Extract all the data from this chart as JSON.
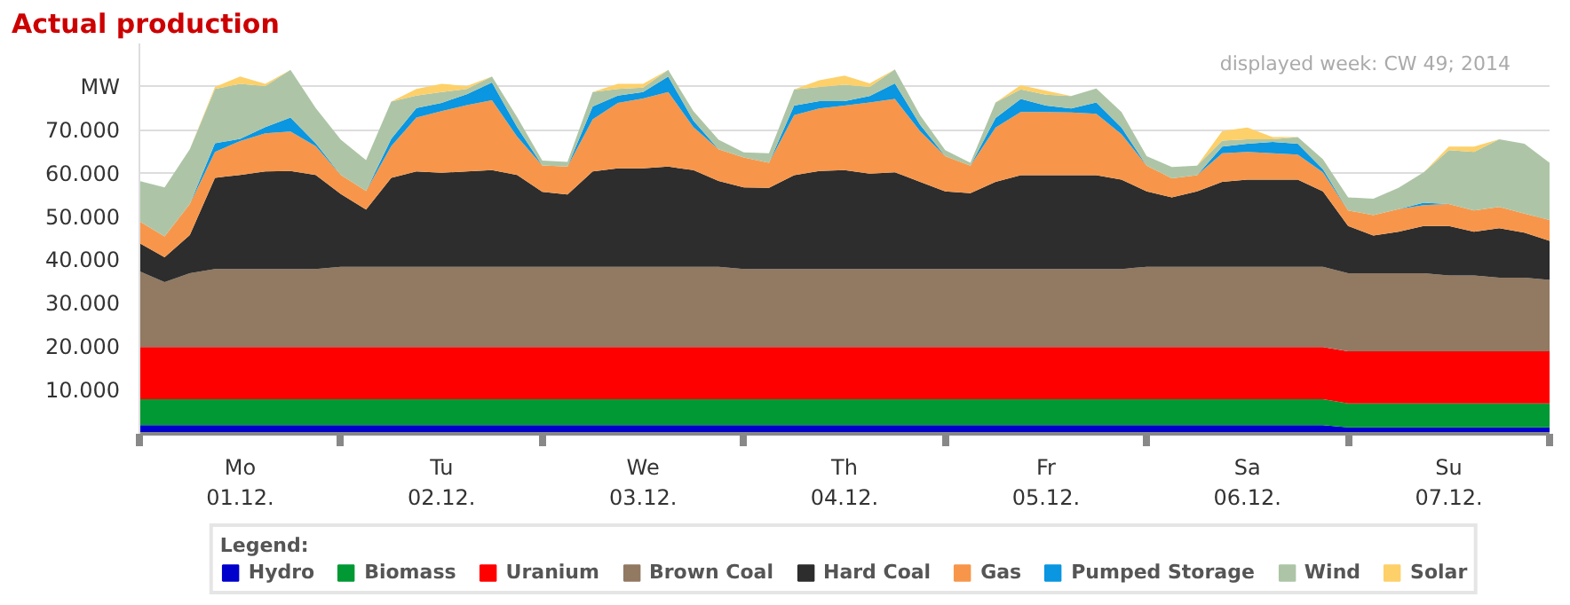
{
  "chart_data": {
    "type": "area",
    "stacked": true,
    "title": "Actual production",
    "ylabel": "MW",
    "legend_title": "Legend:",
    "annotations": [
      "displayed week: CW 49; 2014"
    ],
    "x": [
      "2014-12-01T00:00",
      "2014-12-01T03:00",
      "2014-12-01T06:00",
      "2014-12-01T09:00",
      "2014-12-01T12:00",
      "2014-12-01T15:00",
      "2014-12-01T18:00",
      "2014-12-01T21:00",
      "2014-12-02T00:00",
      "2014-12-02T03:00",
      "2014-12-02T06:00",
      "2014-12-02T09:00",
      "2014-12-02T12:00",
      "2014-12-02T15:00",
      "2014-12-02T18:00",
      "2014-12-02T21:00",
      "2014-12-03T00:00",
      "2014-12-03T03:00",
      "2014-12-03T06:00",
      "2014-12-03T09:00",
      "2014-12-03T12:00",
      "2014-12-03T15:00",
      "2014-12-03T18:00",
      "2014-12-03T21:00",
      "2014-12-04T00:00",
      "2014-12-04T03:00",
      "2014-12-04T06:00",
      "2014-12-04T09:00",
      "2014-12-04T12:00",
      "2014-12-04T15:00",
      "2014-12-04T18:00",
      "2014-12-04T21:00",
      "2014-12-05T00:00",
      "2014-12-05T03:00",
      "2014-12-05T06:00",
      "2014-12-05T09:00",
      "2014-12-05T12:00",
      "2014-12-05T15:00",
      "2014-12-05T18:00",
      "2014-12-05T21:00",
      "2014-12-06T00:00",
      "2014-12-06T03:00",
      "2014-12-06T06:00",
      "2014-12-06T09:00",
      "2014-12-06T12:00",
      "2014-12-06T15:00",
      "2014-12-06T18:00",
      "2014-12-06T21:00",
      "2014-12-07T00:00",
      "2014-12-07T03:00",
      "2014-12-07T06:00",
      "2014-12-07T09:00",
      "2014-12-07T12:00",
      "2014-12-07T15:00",
      "2014-12-07T18:00",
      "2014-12-07T21:00",
      "2014-12-08T00:00"
    ],
    "xlim": [
      "2014-12-01T00:00",
      "2014-12-08T00:00"
    ],
    "xticks": [
      {
        "value": "2014-12-01T00:00",
        "label": null
      },
      {
        "value": "2014-12-01T12:00",
        "label": "Mo\n01.12."
      },
      {
        "value": "2014-12-02T00:00",
        "label": null
      },
      {
        "value": "2014-12-02T12:00",
        "label": "Tu\n02.12."
      },
      {
        "value": "2014-12-03T00:00",
        "label": null
      },
      {
        "value": "2014-12-03T12:00",
        "label": "We\n03.12."
      },
      {
        "value": "2014-12-04T00:00",
        "label": null
      },
      {
        "value": "2014-12-04T12:00",
        "label": "Th\n04.12."
      },
      {
        "value": "2014-12-05T00:00",
        "label": null
      },
      {
        "value": "2014-12-05T12:00",
        "label": "Fr\n05.12."
      },
      {
        "value": "2014-12-06T00:00",
        "label": null
      },
      {
        "value": "2014-12-06T12:00",
        "label": "Sa\n06.12."
      },
      {
        "value": "2014-12-07T00:00",
        "label": null
      },
      {
        "value": "2014-12-07T12:00",
        "label": "Su\n07.12."
      },
      {
        "value": "2014-12-08T00:00",
        "label": null
      }
    ],
    "ylim": [
      0,
      90000
    ],
    "yticks": [
      {
        "value": 10000,
        "label": "10.000"
      },
      {
        "value": 20000,
        "label": "20.000"
      },
      {
        "value": 30000,
        "label": "30.000"
      },
      {
        "value": 40000,
        "label": "40.000"
      },
      {
        "value": 50000,
        "label": "50.000"
      },
      {
        "value": 60000,
        "label": "60.000"
      },
      {
        "value": 70000,
        "label": "70.000"
      },
      {
        "value": 80000,
        "label": null
      }
    ],
    "grid": "y",
    "legend": "bottom",
    "series": [
      {
        "name": "Hydro",
        "color": "#0000cc",
        "values": [
          2000,
          2000,
          2000,
          2000,
          2000,
          2000,
          2000,
          2000,
          2000,
          2000,
          2000,
          2000,
          2000,
          2000,
          2000,
          2000,
          2000,
          2000,
          2000,
          2000,
          2000,
          2000,
          2000,
          2000,
          2000,
          2000,
          2000,
          2000,
          2000,
          2000,
          2000,
          2000,
          2000,
          2000,
          2000,
          2000,
          2000,
          2000,
          2000,
          2000,
          2000,
          2000,
          2000,
          2000,
          2000,
          2000,
          2000,
          2000,
          1500,
          1500,
          1500,
          1500,
          1500,
          1500,
          1500,
          1500,
          1500
        ]
      },
      {
        "name": "Biomass",
        "color": "#009933",
        "values": [
          6000,
          6000,
          6000,
          6000,
          6000,
          6000,
          6000,
          6000,
          6000,
          6000,
          6000,
          6000,
          6000,
          6000,
          6000,
          6000,
          6000,
          6000,
          6000,
          6000,
          6000,
          6000,
          6000,
          6000,
          6000,
          6000,
          6000,
          6000,
          6000,
          6000,
          6000,
          6000,
          6000,
          6000,
          6000,
          6000,
          6000,
          6000,
          6000,
          6000,
          6000,
          6000,
          6000,
          6000,
          6000,
          6000,
          6000,
          6000,
          5500,
          5500,
          5500,
          5500,
          5500,
          5500,
          5500,
          5500,
          5500
        ]
      },
      {
        "name": "Uranium",
        "color": "#ff0000",
        "values": [
          12000,
          12000,
          12000,
          12000,
          12000,
          12000,
          12000,
          12000,
          12000,
          12000,
          12000,
          12000,
          12000,
          12000,
          12000,
          12000,
          12000,
          12000,
          12000,
          12000,
          12000,
          12000,
          12000,
          12000,
          12000,
          12000,
          12000,
          12000,
          12000,
          12000,
          12000,
          12000,
          12000,
          12000,
          12000,
          12000,
          12000,
          12000,
          12000,
          12000,
          12000,
          12000,
          12000,
          12000,
          12000,
          12000,
          12000,
          12000,
          12000,
          12000,
          12000,
          12000,
          12000,
          12000,
          12000,
          12000,
          12000
        ]
      },
      {
        "name": "Brown Coal",
        "color": "#927962",
        "values": [
          17500,
          15000,
          17000,
          18000,
          18000,
          18000,
          18000,
          18000,
          18500,
          18500,
          18500,
          18500,
          18500,
          18500,
          18500,
          18500,
          18500,
          18500,
          18500,
          18500,
          18500,
          18500,
          18500,
          18500,
          18000,
          18000,
          18000,
          18000,
          18000,
          18000,
          18000,
          18000,
          18000,
          18000,
          18000,
          18000,
          18000,
          18000,
          18000,
          18000,
          18500,
          18500,
          18500,
          18500,
          18500,
          18500,
          18500,
          18500,
          18000,
          18000,
          18000,
          18000,
          17500,
          17500,
          17000,
          17000,
          16500
        ]
      },
      {
        "name": "Hard Coal",
        "color": "#2d2d2d",
        "values": [
          6500,
          5700,
          8800,
          21000,
          21700,
          22500,
          22600,
          21700,
          16800,
          13200,
          20500,
          22000,
          21700,
          22000,
          22300,
          21200,
          17300,
          16700,
          22000,
          22700,
          22700,
          23100,
          22300,
          19800,
          18800,
          18700,
          21600,
          22600,
          22800,
          22000,
          22300,
          20100,
          17900,
          17500,
          20100,
          21600,
          21600,
          21600,
          21600,
          20600,
          17400,
          16000,
          17400,
          19600,
          20100,
          20100,
          20100,
          17400,
          10900,
          8700,
          9600,
          10900,
          11400,
          10100,
          11400,
          10400,
          9000
        ]
      },
      {
        "name": "Gas",
        "color": "#f7964a",
        "values": [
          5000,
          4800,
          7200,
          6000,
          7800,
          8800,
          9100,
          6600,
          4400,
          4300,
          7300,
          12400,
          14200,
          15300,
          16100,
          8800,
          6100,
          6400,
          12000,
          15100,
          16100,
          17200,
          9900,
          7300,
          6900,
          5800,
          13900,
          14400,
          14900,
          16400,
          16900,
          11700,
          8100,
          6300,
          12500,
          14600,
          14600,
          14500,
          14200,
          10500,
          5900,
          4400,
          3700,
          6600,
          6400,
          6100,
          5800,
          4400,
          3600,
          4700,
          5200,
          4800,
          5100,
          4900,
          4900,
          4400,
          4800
        ]
      },
      {
        "name": "Pumped Storage",
        "color": "#0a96e0",
        "values": [
          0,
          0,
          0,
          2000,
          500,
          1400,
          3200,
          700,
          0,
          0,
          1700,
          2200,
          1900,
          2500,
          4100,
          2200,
          0,
          0,
          3000,
          1700,
          1500,
          3600,
          1500,
          0,
          0,
          0,
          2200,
          1700,
          1000,
          1500,
          3600,
          1500,
          0,
          0,
          2200,
          3000,
          1500,
          900,
          2600,
          1500,
          0,
          0,
          0,
          1500,
          1900,
          2600,
          2500,
          700,
          0,
          0,
          0,
          600,
          0,
          0,
          0,
          0,
          0
        ]
      },
      {
        "name": "Wind",
        "color": "#adc5a6",
        "values": [
          9300,
          11300,
          12600,
          12500,
          12700,
          9500,
          11000,
          8100,
          8100,
          7100,
          8600,
          2900,
          2500,
          1200,
          1400,
          2300,
          1100,
          1100,
          3300,
          1500,
          1000,
          1500,
          2200,
          2200,
          1200,
          2200,
          3700,
          3300,
          3800,
          2100,
          3200,
          2200,
          1400,
          700,
          3600,
          2200,
          2500,
          2900,
          3200,
          3600,
          2200,
          2600,
          2200,
          1400,
          1000,
          600,
          1500,
          2300,
          3000,
          3800,
          4900,
          7000,
          12400,
          13500,
          15600,
          16100,
          13200
        ]
      },
      {
        "name": "Solar",
        "color": "#fdd06a",
        "values": [
          0,
          0,
          0,
          500,
          1700,
          500,
          0,
          0,
          0,
          0,
          0,
          1500,
          1900,
          700,
          0,
          0,
          0,
          0,
          0,
          1200,
          900,
          0,
          0,
          0,
          0,
          0,
          0,
          1500,
          2100,
          800,
          0,
          0,
          0,
          0,
          0,
          1000,
          900,
          0,
          0,
          0,
          0,
          0,
          0,
          2200,
          2700,
          500,
          0,
          0,
          0,
          0,
          0,
          0,
          800,
          1200,
          0,
          0,
          0
        ]
      }
    ]
  }
}
